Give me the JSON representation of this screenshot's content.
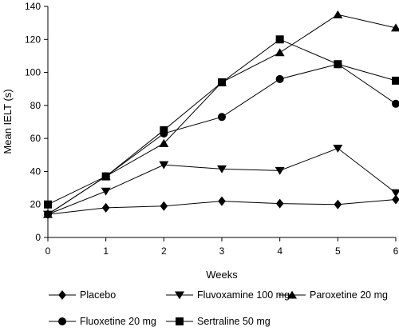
{
  "chart_data": {
    "type": "line",
    "title": "",
    "xlabel": "Weeks",
    "ylabel": "Mean IELT (s)",
    "x": [
      0,
      1,
      2,
      3,
      4,
      5,
      6
    ],
    "xlim": [
      0,
      6
    ],
    "ylim": [
      0,
      140
    ],
    "yticks": [
      0,
      20,
      40,
      60,
      80,
      100,
      120,
      140
    ],
    "xticks": [
      0,
      1,
      2,
      3,
      4,
      5,
      6
    ],
    "grid": false,
    "legend_position": "bottom",
    "series": [
      {
        "name": "Placebo",
        "marker": "diamond",
        "values": [
          14,
          18,
          19,
          22,
          20.5,
          20,
          23
        ]
      },
      {
        "name": "Fluvoxamine 100 mg",
        "marker": "triangle-down",
        "values": [
          14,
          28,
          44,
          41.5,
          40.5,
          54,
          27
        ]
      },
      {
        "name": "Paroxetine 20 mg",
        "marker": "triangle-up",
        "values": [
          14,
          37,
          57,
          94,
          112,
          135,
          127
        ]
      },
      {
        "name": "Fluoxetine 20 mg",
        "marker": "circle",
        "values": [
          14,
          37,
          63,
          73,
          96,
          105,
          81
        ]
      },
      {
        "name": "Sertraline 50 mg",
        "marker": "square",
        "values": [
          20,
          37,
          65,
          94,
          120,
          105,
          95
        ]
      }
    ]
  }
}
